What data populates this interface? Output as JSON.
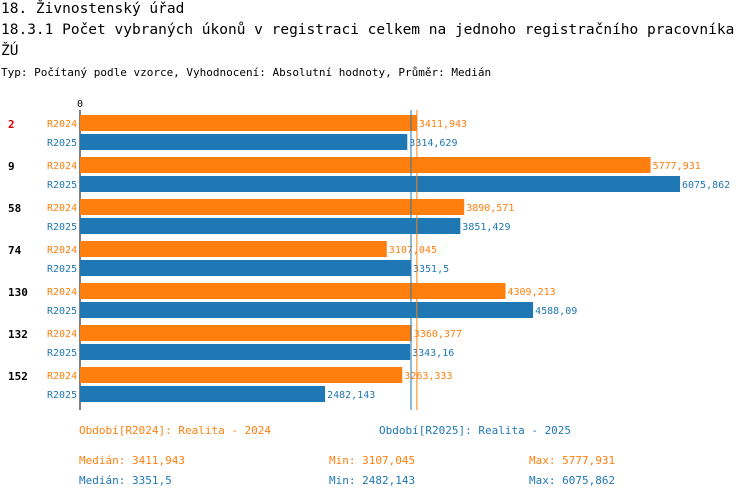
{
  "header": {
    "title": "18. Živnostenský úřad",
    "subtitle": "18.3.1 Počet vybraných úkonů v registraci celkem na jednoho registračního pracovníka ŽÚ",
    "meta": "Typ: Počítaný podle vzorce, Vyhodnocení: Absolutní hodnoty, Průměr: Medián"
  },
  "colors": {
    "r2024": "#ff7f0e",
    "r2025": "#1f77b4",
    "highlight_group": "#dd0000"
  },
  "chart_data": {
    "type": "bar",
    "orientation": "horizontal",
    "axis_zero_label": "0",
    "xlim": [
      0,
      6300
    ],
    "categories": [
      "2",
      "9",
      "58",
      "74",
      "130",
      "132",
      "152"
    ],
    "highlighted_category": "2",
    "series": [
      {
        "name": "R2024",
        "values": [
          3411.943,
          5777.931,
          3890.571,
          3107.045,
          4309.213,
          3360.377,
          3263.333
        ],
        "labels": [
          "3411,943",
          "5777,931",
          "3890,571",
          "3107,045",
          "4309,213",
          "3360,377",
          "3263,333"
        ]
      },
      {
        "name": "R2025",
        "values": [
          3314.629,
          6075.862,
          3851.429,
          3351.5,
          4588.09,
          3343.16,
          2482.143
        ],
        "labels": [
          "3314,629",
          "6075,862",
          "3851,429",
          "3351,5",
          "4588,09",
          "3343,16",
          "2482,143"
        ]
      }
    ],
    "medians": [
      {
        "series": "R2024",
        "value": 3411.943
      },
      {
        "series": "R2025",
        "value": 3351.5
      }
    ]
  },
  "legend": {
    "r2024": "Období[R2024]: Realita - 2024",
    "r2025": "Období[R2025]: Realita - 2025"
  },
  "stats": {
    "r2024": {
      "median": "Medián: 3411,943",
      "min": "Min: 3107,045",
      "max": "Max: 5777,931"
    },
    "r2025": {
      "median": "Medián: 3351,5",
      "min": "Min: 2482,143",
      "max": "Max: 6075,862"
    }
  }
}
